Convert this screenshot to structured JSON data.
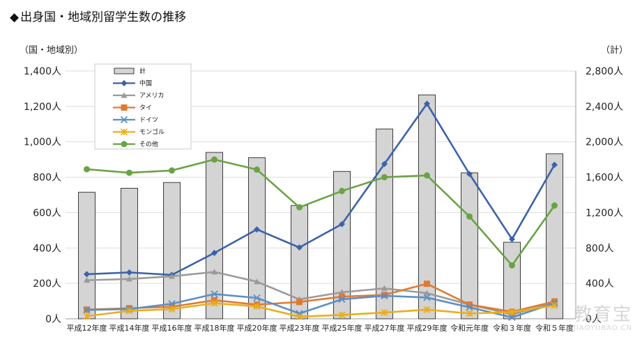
{
  "title": "出身国・地域別留学生数の推移",
  "title_marker": "◆",
  "watermark": {
    "text": "教育宝",
    "sub": "JIAOYUBAO.CN"
  },
  "chart_data": {
    "type": "bar+line",
    "left_axis_label": "（国・地域別）",
    "right_axis_label": "（計）",
    "left_ticks": [
      "0人",
      "200人",
      "400人",
      "600人",
      "800人",
      "1,000人",
      "1,200人",
      "1,400人"
    ],
    "right_ticks": [
      "0人",
      "400人",
      "800人",
      "1,200人",
      "1,600人",
      "2,000人",
      "2,400人",
      "2,800人"
    ],
    "left_ylim": [
      0,
      1400
    ],
    "right_ylim": [
      0,
      2800
    ],
    "categories": [
      "平成12年度",
      "平成14年度",
      "平成16年度",
      "平成18年度",
      "平成20年度",
      "平成23年度",
      "平成25年度",
      "平成27年度",
      "平成29年度",
      "令和元年度",
      "令和３年度",
      "令和５年度"
    ],
    "bar_series": {
      "name": "計",
      "axis": "right",
      "color": "#d4d4d4",
      "values": [
        1430,
        1475,
        1540,
        1880,
        1820,
        1280,
        1665,
        2145,
        2530,
        1650,
        865,
        1865
      ]
    },
    "series": [
      {
        "name": "中国",
        "color": "#3b62a9",
        "marker": "diamond",
        "values": [
          252,
          262,
          248,
          372,
          505,
          403,
          535,
          875,
          1215,
          818,
          450,
          870
        ]
      },
      {
        "name": "アメリカ",
        "color": "#9a9a9a",
        "marker": "triangle",
        "values": [
          218,
          225,
          240,
          265,
          210,
          110,
          150,
          172,
          145,
          80,
          25,
          90
        ]
      },
      {
        "name": "タイ",
        "color": "#e07a32",
        "marker": "square",
        "values": [
          52,
          60,
          68,
          105,
          80,
          95,
          125,
          135,
          198,
          80,
          40,
          98
        ]
      },
      {
        "name": "ドイツ",
        "color": "#5b8fc6",
        "marker": "x",
        "values": [
          50,
          55,
          85,
          140,
          118,
          30,
          110,
          130,
          120,
          65,
          8,
          88
        ]
      },
      {
        "name": "モンゴル",
        "color": "#e9ae1a",
        "marker": "star",
        "values": [
          15,
          45,
          55,
          88,
          70,
          12,
          22,
          35,
          52,
          30,
          38,
          75
        ]
      },
      {
        "name": "その他",
        "color": "#6aa345",
        "marker": "circle",
        "values": [
          845,
          825,
          838,
          900,
          843,
          630,
          722,
          800,
          810,
          578,
          302,
          640
        ]
      }
    ]
  }
}
